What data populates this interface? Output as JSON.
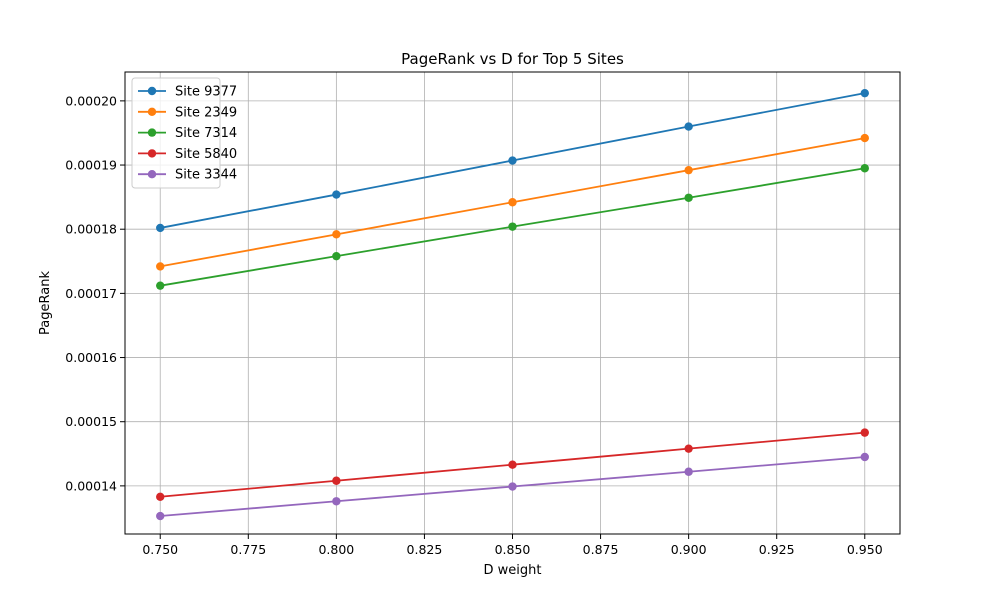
{
  "chart_data": {
    "type": "line",
    "title": "PageRank vs D for Top 5 Sites",
    "xlabel": "D weight",
    "ylabel": "PageRank",
    "x": [
      0.75,
      0.8,
      0.85,
      0.9,
      0.95
    ],
    "xlim": [
      0.74,
      0.96
    ],
    "ylim": [
      0.0001325,
      0.0002045
    ],
    "xticks": [
      0.75,
      0.775,
      0.8,
      0.825,
      0.85,
      0.875,
      0.9,
      0.925,
      0.95
    ],
    "xtick_labels": [
      "0.750",
      "0.775",
      "0.800",
      "0.825",
      "0.850",
      "0.875",
      "0.900",
      "0.925",
      "0.950"
    ],
    "yticks": [
      0.00014,
      0.00015,
      0.00016,
      0.00017,
      0.00018,
      0.00019,
      0.0002
    ],
    "ytick_labels": [
      "0.00014",
      "0.00015",
      "0.00016",
      "0.00017",
      "0.00018",
      "0.00019",
      "0.00020"
    ],
    "grid": true,
    "legend_position": "top-left",
    "marker": "circle",
    "series": [
      {
        "name": "Site 9377",
        "color": "#1f77b4",
        "values": [
          0.0001802,
          0.0001854,
          0.0001907,
          0.000196,
          0.0002012
        ]
      },
      {
        "name": "Site 2349",
        "color": "#ff7f0e",
        "values": [
          0.0001742,
          0.0001792,
          0.0001842,
          0.0001892,
          0.0001942
        ]
      },
      {
        "name": "Site 7314",
        "color": "#2ca02c",
        "values": [
          0.0001712,
          0.0001758,
          0.0001804,
          0.0001849,
          0.0001895
        ]
      },
      {
        "name": "Site 5840",
        "color": "#d62728",
        "values": [
          0.0001383,
          0.0001408,
          0.0001433,
          0.0001458,
          0.0001483
        ]
      },
      {
        "name": "Site 3344",
        "color": "#9467bd",
        "values": [
          0.0001353,
          0.0001376,
          0.0001399,
          0.0001422,
          0.0001445
        ]
      }
    ]
  }
}
